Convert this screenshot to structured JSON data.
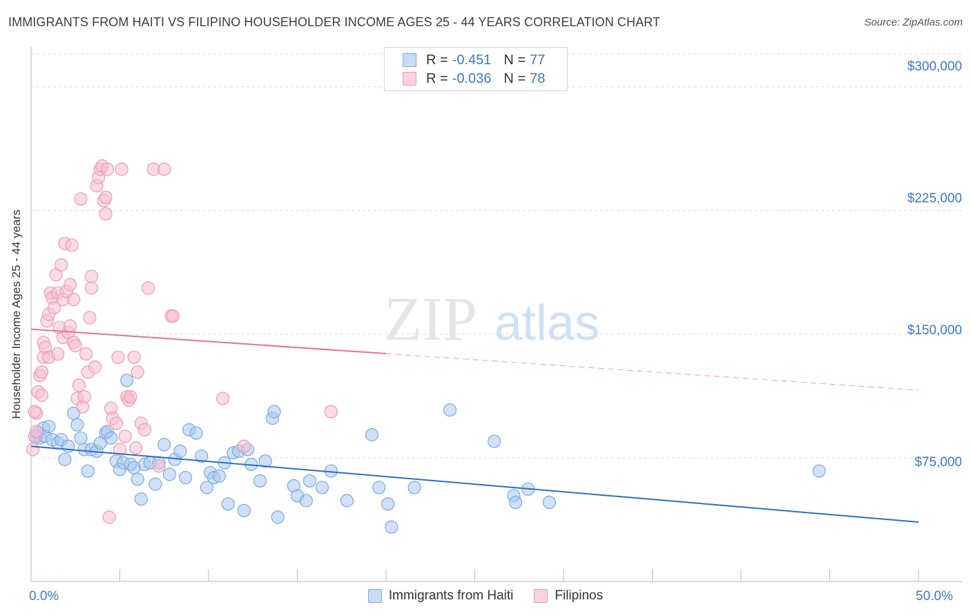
{
  "title": "IMMIGRANTS FROM HAITI VS FILIPINO HOUSEHOLDER INCOME AGES 25 - 44 YEARS CORRELATION CHART",
  "source": "Source: ZipAtlas.com",
  "watermark": {
    "zip": "ZIP",
    "atlas": "atlas"
  },
  "legend": {
    "r_label": "R =",
    "n_label": "N =",
    "rows": [
      {
        "r": "-0.451",
        "n": "77"
      },
      {
        "r": "-0.036",
        "n": "78"
      }
    ]
  },
  "colors": {
    "haiti_fill": "#aac8f0",
    "haiti_stroke": "#7aa8e0",
    "haiti_line": "#2a6dd0",
    "filipino_fill": "#f8bfd0",
    "filipino_stroke": "#ec98b4",
    "filipino_line": "#e8709a",
    "tick_text": "#3b78c9",
    "grid": "#dcdcdc"
  },
  "chart_data": {
    "type": "scatter",
    "title": "IMMIGRANTS FROM HAITI VS FILIPINO HOUSEHOLDER INCOME AGES 25 - 44 YEARS CORRELATION CHART",
    "xlabel": "",
    "ylabel": "Householder Income Ages 25 - 44 years",
    "xlim": [
      0,
      50
    ],
    "ylim": [
      0,
      320000
    ],
    "x_tick_labels": [
      "0.0%",
      "50.0%"
    ],
    "y_ticks": [
      75000,
      150000,
      225000,
      300000
    ],
    "y_tick_labels": [
      "$75,000",
      "$150,000",
      "$225,000",
      "$300,000"
    ],
    "grid": true,
    "legend_position": "top-center and bottom",
    "series": [
      {
        "name": "Immigrants from Haiti",
        "trend": {
          "x": [
            0,
            50
          ],
          "y": [
            82000,
            36000
          ],
          "solid_to": 50
        },
        "points": [
          [
            0.3,
            88000
          ],
          [
            0.4,
            90000
          ],
          [
            0.5,
            87000
          ],
          [
            0.7,
            93000
          ],
          [
            0.8,
            88000
          ],
          [
            1.0,
            94000
          ],
          [
            1.2,
            86000
          ],
          [
            1.5,
            84000
          ],
          [
            1.7,
            86000
          ],
          [
            1.9,
            74000
          ],
          [
            2.1,
            82000
          ],
          [
            2.4,
            102000
          ],
          [
            2.6,
            95000
          ],
          [
            2.8,
            87000
          ],
          [
            3.0,
            80000
          ],
          [
            3.2,
            67000
          ],
          [
            3.4,
            80000
          ],
          [
            3.7,
            79000
          ],
          [
            3.9,
            84000
          ],
          [
            4.2,
            90000
          ],
          [
            4.3,
            91000
          ],
          [
            4.5,
            87000
          ],
          [
            4.8,
            73000
          ],
          [
            5.0,
            68000
          ],
          [
            5.2,
            72000
          ],
          [
            5.4,
            122000
          ],
          [
            5.6,
            71000
          ],
          [
            5.8,
            69000
          ],
          [
            6.0,
            62000
          ],
          [
            6.2,
            50000
          ],
          [
            6.4,
            71000
          ],
          [
            6.7,
            72000
          ],
          [
            7.0,
            59000
          ],
          [
            7.2,
            72000
          ],
          [
            7.5,
            83000
          ],
          [
            7.8,
            65000
          ],
          [
            8.1,
            74000
          ],
          [
            8.4,
            79000
          ],
          [
            8.7,
            63000
          ],
          [
            8.9,
            92000
          ],
          [
            9.3,
            90000
          ],
          [
            9.6,
            76000
          ],
          [
            9.9,
            57000
          ],
          [
            10.1,
            66000
          ],
          [
            10.3,
            63000
          ],
          [
            10.6,
            64000
          ],
          [
            10.9,
            72000
          ],
          [
            11.1,
            47000
          ],
          [
            11.4,
            78000
          ],
          [
            11.7,
            79000
          ],
          [
            12.0,
            43000
          ],
          [
            12.2,
            80000
          ],
          [
            12.4,
            71000
          ],
          [
            12.9,
            61000
          ],
          [
            13.2,
            73000
          ],
          [
            13.6,
            99000
          ],
          [
            13.7,
            103000
          ],
          [
            13.9,
            39000
          ],
          [
            14.8,
            58000
          ],
          [
            15.0,
            52000
          ],
          [
            15.5,
            49000
          ],
          [
            15.7,
            61000
          ],
          [
            16.4,
            57000
          ],
          [
            16.9,
            67000
          ],
          [
            17.8,
            49000
          ],
          [
            19.2,
            89000
          ],
          [
            19.6,
            57000
          ],
          [
            20.1,
            47000
          ],
          [
            20.3,
            33000
          ],
          [
            21.6,
            57000
          ],
          [
            23.6,
            104000
          ],
          [
            26.1,
            85000
          ],
          [
            27.2,
            52000
          ],
          [
            27.3,
            48000
          ],
          [
            28.0,
            56000
          ],
          [
            29.2,
            48000
          ],
          [
            44.4,
            67000
          ]
        ]
      },
      {
        "name": "Filipinos",
        "trend": {
          "x": [
            0,
            50
          ],
          "y": [
            153000,
            116000
          ],
          "solid_to": 20
        },
        "points": [
          [
            0.1,
            80000
          ],
          [
            0.2,
            88000
          ],
          [
            0.3,
            102000
          ],
          [
            0.4,
            115000
          ],
          [
            0.5,
            125000
          ],
          [
            0.6,
            127000
          ],
          [
            0.7,
            136000
          ],
          [
            0.7,
            145000
          ],
          [
            0.8,
            142000
          ],
          [
            0.9,
            158000
          ],
          [
            1.0,
            162000
          ],
          [
            1.0,
            136000
          ],
          [
            1.1,
            175000
          ],
          [
            1.2,
            172000
          ],
          [
            1.3,
            166000
          ],
          [
            1.4,
            186000
          ],
          [
            1.5,
            138000
          ],
          [
            1.5,
            175000
          ],
          [
            1.6,
            154000
          ],
          [
            1.7,
            192000
          ],
          [
            1.8,
            148000
          ],
          [
            1.8,
            171000
          ],
          [
            1.9,
            205000
          ],
          [
            2.0,
            176000
          ],
          [
            2.1,
            151000
          ],
          [
            2.2,
            155000
          ],
          [
            2.2,
            180000
          ],
          [
            2.3,
            204000
          ],
          [
            2.4,
            171000
          ],
          [
            2.4,
            145000
          ],
          [
            2.5,
            143000
          ],
          [
            2.6,
            111000
          ],
          [
            2.7,
            119000
          ],
          [
            2.8,
            232000
          ],
          [
            2.9,
            106000
          ],
          [
            3.0,
            112000
          ],
          [
            3.1,
            138000
          ],
          [
            3.2,
            127000
          ],
          [
            3.3,
            160000
          ],
          [
            3.4,
            178000
          ],
          [
            3.4,
            185000
          ],
          [
            3.6,
            130000
          ],
          [
            3.7,
            240000
          ],
          [
            3.8,
            245000
          ],
          [
            3.9,
            250000
          ],
          [
            4.0,
            252000
          ],
          [
            4.1,
            231000
          ],
          [
            4.2,
            233000
          ],
          [
            4.2,
            223000
          ],
          [
            4.3,
            250000
          ],
          [
            4.4,
            39000
          ],
          [
            4.5,
            105000
          ],
          [
            4.6,
            99000
          ],
          [
            4.8,
            96000
          ],
          [
            4.9,
            136000
          ],
          [
            5.0,
            80000
          ],
          [
            5.1,
            250000
          ],
          [
            5.3,
            88000
          ],
          [
            5.4,
            112000
          ],
          [
            5.5,
            110000
          ],
          [
            5.6,
            112000
          ],
          [
            5.8,
            136000
          ],
          [
            5.9,
            81000
          ],
          [
            6.0,
            127000
          ],
          [
            6.2,
            96000
          ],
          [
            6.4,
            92000
          ],
          [
            6.6,
            178000
          ],
          [
            6.9,
            250000
          ],
          [
            7.2,
            70000
          ],
          [
            7.5,
            250000
          ],
          [
            7.9,
            161000
          ],
          [
            8.0,
            161000
          ],
          [
            10.8,
            111000
          ],
          [
            12.0,
            82000
          ],
          [
            16.9,
            103000
          ],
          [
            0.2,
            103000
          ],
          [
            0.3,
            91000
          ],
          [
            0.6,
            113000
          ]
        ]
      }
    ]
  },
  "bottom_legend": [
    "Immigrants from Haiti",
    "Filipinos"
  ]
}
